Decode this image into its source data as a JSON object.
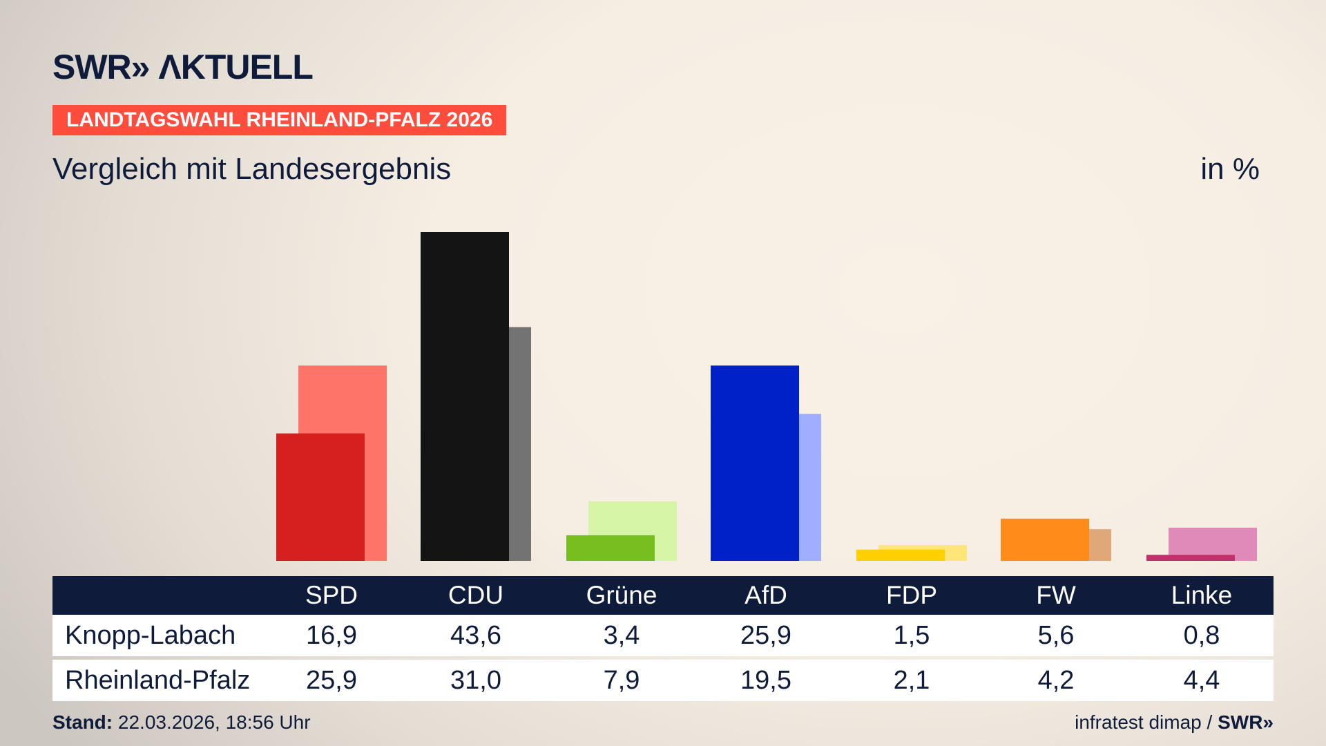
{
  "header": {
    "logo": "SWR» ΛKTUELL",
    "banner": "LANDTAGSWAHL RHEINLAND-PFALZ 2026",
    "subtitle": "Vergleich mit Landesergebnis",
    "unit": "in %"
  },
  "chart_data": {
    "type": "bar",
    "categories": [
      "SPD",
      "CDU",
      "Grüne",
      "AfD",
      "FDP",
      "FW",
      "Linke"
    ],
    "series": [
      {
        "name": "Knopp-Labach",
        "values": [
          16.9,
          43.6,
          3.4,
          25.9,
          1.5,
          5.6,
          0.8
        ],
        "colors": [
          "#d61f1f",
          "#141414",
          "#78be1e",
          "#0021c8",
          "#ffd000",
          "#ff8c1a",
          "#c0306a"
        ]
      },
      {
        "name": "Rheinland-Pfalz",
        "values": [
          25.9,
          31.0,
          7.9,
          19.5,
          2.1,
          4.2,
          4.4
        ],
        "colors": [
          "#ff7469",
          "#737373",
          "#d6f5a6",
          "#a0aeff",
          "#ffe57a",
          "#e0a878",
          "#df8ab8"
        ]
      }
    ],
    "ylim": [
      0,
      43.6
    ]
  },
  "table": {
    "headers": [
      "SPD",
      "CDU",
      "Grüne",
      "AfD",
      "FDP",
      "FW",
      "Linke"
    ],
    "rows": [
      {
        "label": "Knopp-Labach",
        "values": [
          "16,9",
          "43,6",
          "3,4",
          "25,9",
          "1,5",
          "5,6",
          "0,8"
        ]
      },
      {
        "label": "Rheinland-Pfalz",
        "values": [
          "25,9",
          "31,0",
          "7,9",
          "19,5",
          "2,1",
          "4,2",
          "4,4"
        ]
      }
    ]
  },
  "footer": {
    "stand_label": "Stand:",
    "stand_value": "22.03.2026, 18:56 Uhr",
    "source": "infratest dimap /",
    "source_logo": "SWR»"
  }
}
